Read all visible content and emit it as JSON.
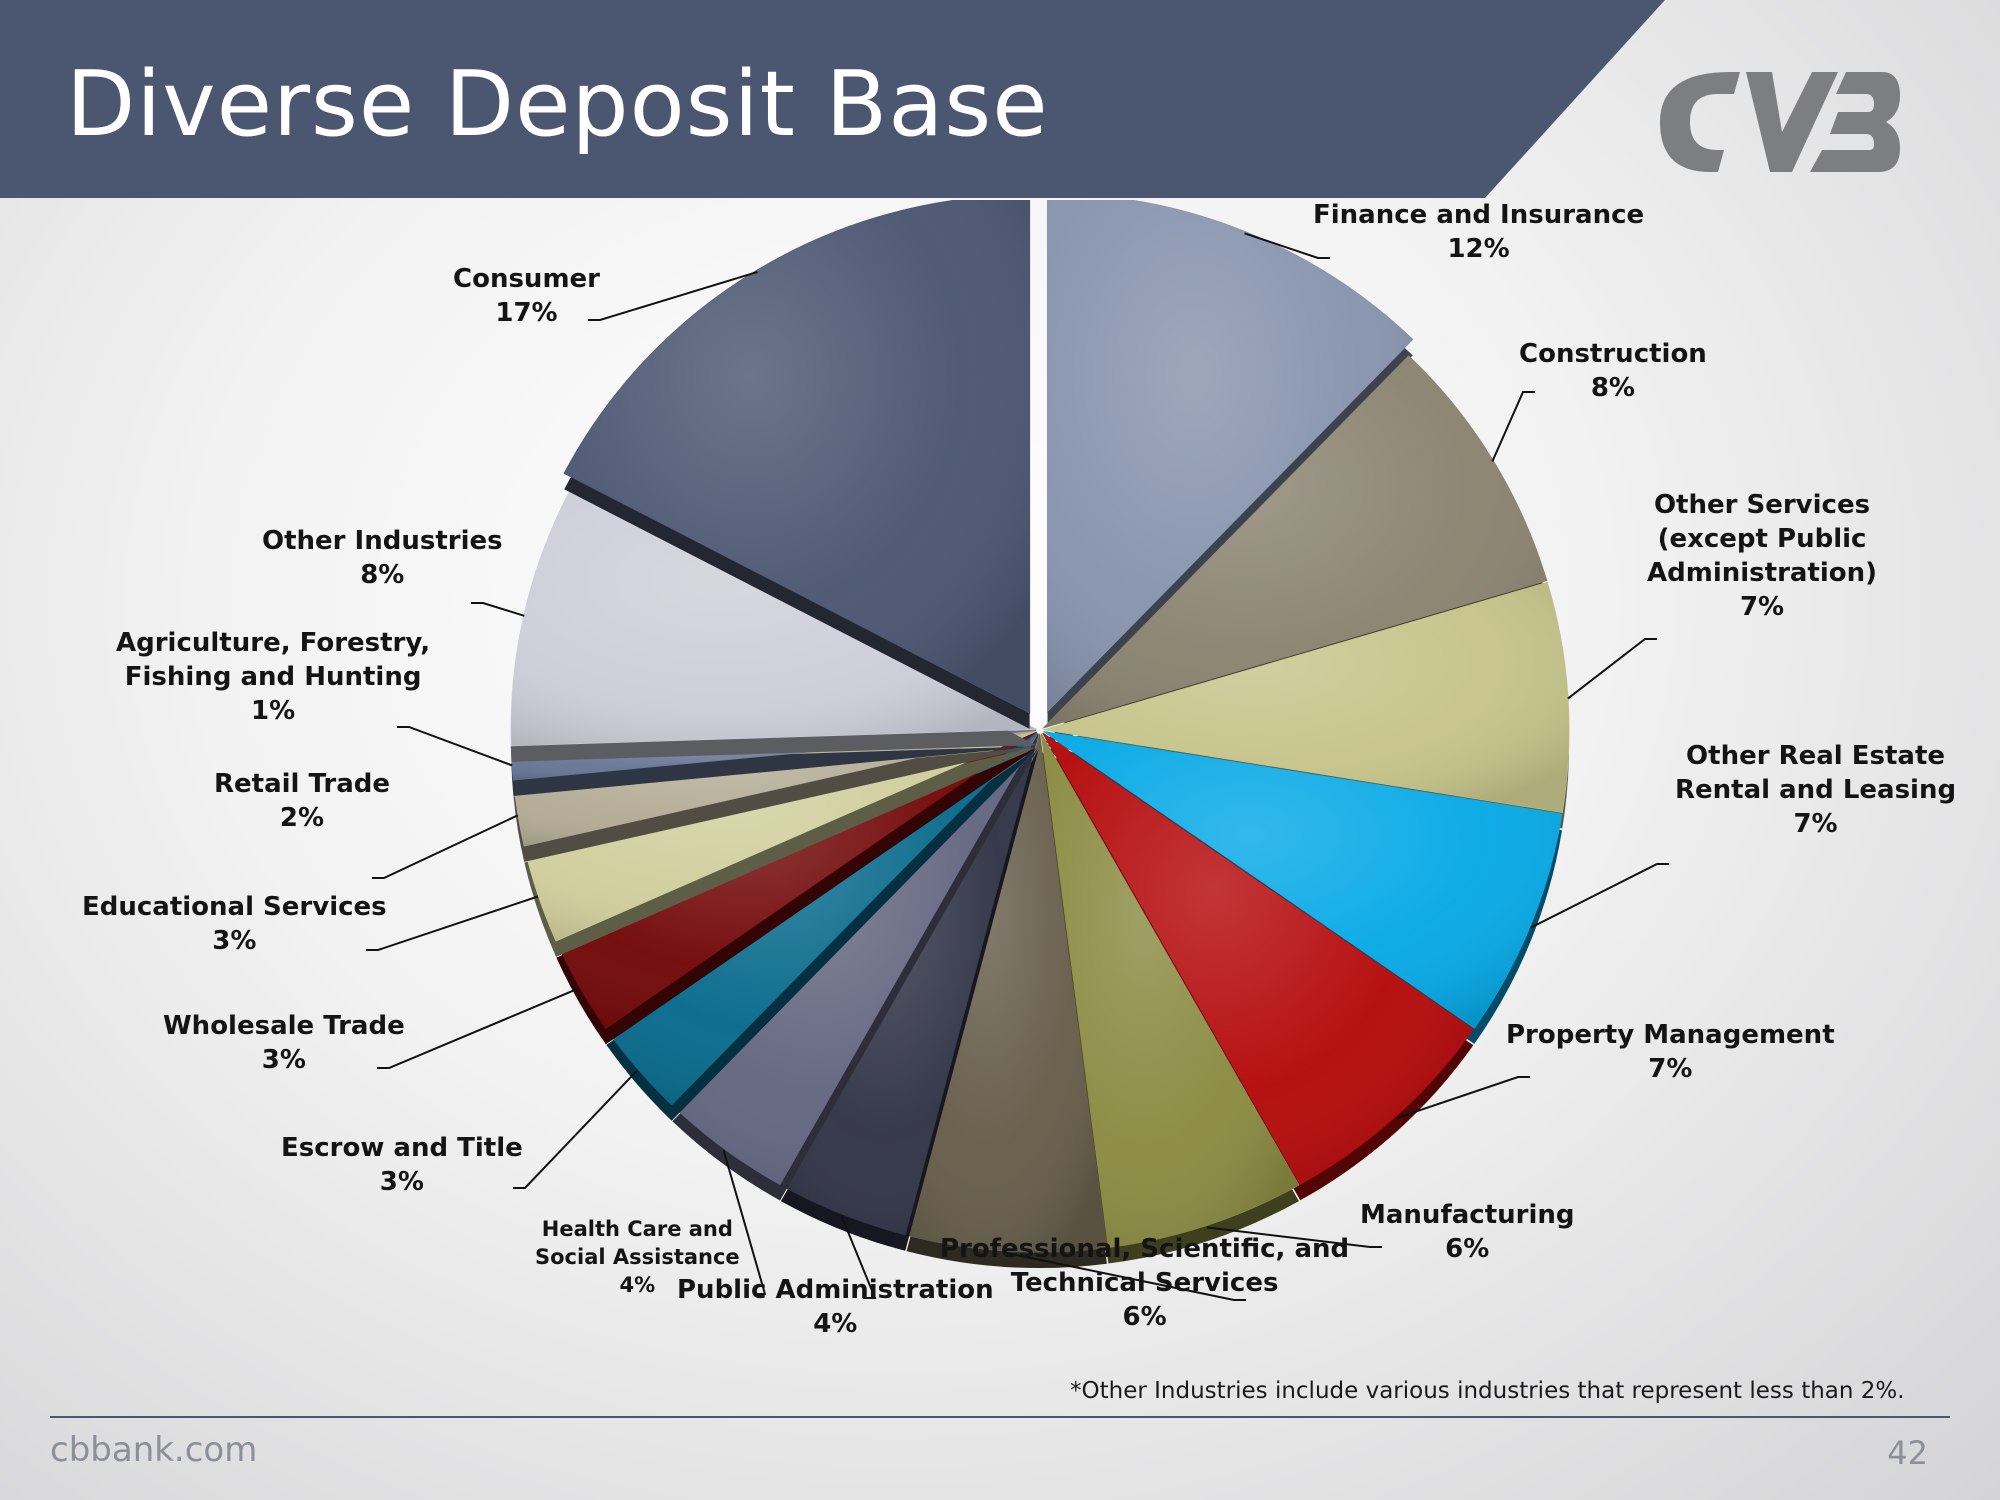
{
  "slide": {
    "title": "Diverse Deposit Base",
    "footnote": "*Other Industries include various industries that represent less than 2%.",
    "website": "cbbank.com",
    "page_number": "42",
    "banner_color": "#4b5670"
  },
  "logo": {
    "text": "CVB",
    "icon": "cvb-logo-icon",
    "color": "#7d7e80"
  },
  "chart_data": {
    "type": "pie",
    "title": "",
    "exploded": [
      "Finance and Insurance",
      "Consumer"
    ],
    "slices": [
      {
        "label": "Finance and Insurance",
        "display": "Finance and Insurance\n12%",
        "value": 12,
        "color": "#8794ad"
      },
      {
        "label": "Construction",
        "display": "Construction\n8%",
        "value": 8,
        "color": "#8a8370"
      },
      {
        "label": "Other Services (except Public Administration)",
        "display": "Other Services\n(except Public\nAdministration)\n7%",
        "value": 7,
        "color": "#c6c48a"
      },
      {
        "label": "Other Real Estate Rental and Leasing",
        "display": "Other Real Estate\nRental and Leasing\n7%",
        "value": 7,
        "color": "#07a9e6"
      },
      {
        "label": "Property Management",
        "display": "Property Management\n7%",
        "value": 7,
        "color": "#b40a0b"
      },
      {
        "label": "Manufacturing",
        "display": "Manufacturing\n6%",
        "value": 6,
        "color": "#8a8b42"
      },
      {
        "label": "Professional, Scientific, and Technical Services",
        "display": "Professional, Scientific, and\nTechnical Services\n6%",
        "value": 6,
        "color": "#665d4a"
      },
      {
        "label": "Public Administration",
        "display": "Public Administration\n4%",
        "value": 4,
        "color": "#313446"
      },
      {
        "label": "Health Care and Social Assistance",
        "display": "Health Care and\nSocial Assistance\n4%",
        "value": 4,
        "color": "#636680"
      },
      {
        "label": "Escrow and Title",
        "display": "Escrow and Title\n3%",
        "value": 3,
        "color": "#086a8c"
      },
      {
        "label": "Wholesale Trade",
        "display": "Wholesale Trade\n3%",
        "value": 3,
        "color": "#720809"
      },
      {
        "label": "Educational Services",
        "display": "Educational Services\n3%",
        "value": 3,
        "color": "#d0ce9c"
      },
      {
        "label": "Retail Trade",
        "display": "Retail Trade\n2%",
        "value": 2,
        "color": "#b3ab94"
      },
      {
        "label": "Agriculture, Forestry, Fishing and Hunting",
        "display": "Agriculture, Forestry,\nFishing and Hunting\n1%",
        "value": 1,
        "color": "#667694"
      },
      {
        "label": "Other Industries",
        "display": "Other Industries\n8%",
        "value": 8,
        "color": "#cdced8"
      },
      {
        "label": "Consumer",
        "display": "Consumer\n17%",
        "value": 17,
        "color": "#4b5670"
      }
    ]
  }
}
